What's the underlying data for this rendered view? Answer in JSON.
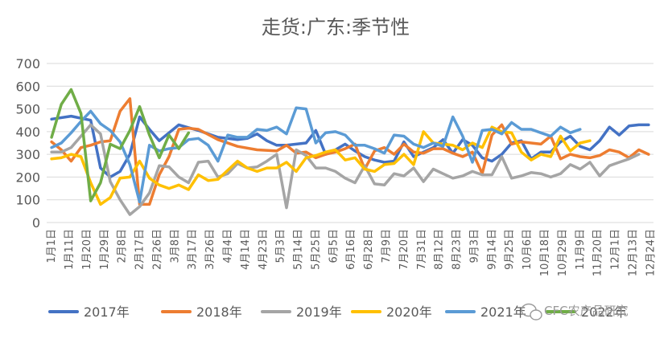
{
  "chart_data": {
    "type": "line",
    "title": "走货:广东:季节性",
    "xlabel": "",
    "ylabel": "",
    "ylim": [
      0,
      700
    ],
    "yticks": [
      0,
      100,
      200,
      300,
      400,
      500,
      600,
      700
    ],
    "grid": true,
    "legend_position": "bottom",
    "categories": [
      "1月1日",
      "1月11日",
      "1月20日",
      "1月29日",
      "2月8日",
      "2月17日",
      "2月26日",
      "3月8日",
      "3月17日",
      "3月26日",
      "4月4日",
      "4月14日",
      "4月23日",
      "5月3日",
      "5月14日",
      "5月25日",
      "6月5日",
      "6月16日",
      "6月28日",
      "7月9日",
      "7月20日",
      "7月31日",
      "8月12日",
      "8月23日",
      "9月3日",
      "9月14日",
      "9月25日",
      "10月6日",
      "10月18日",
      "10月29日",
      "11月9日",
      "11月20日",
      "12月1日",
      "12月13日",
      "12月24日"
    ],
    "series": [
      {
        "name": "2017年",
        "color": "#4472c4",
        "points": [
          [
            1,
            455
          ],
          [
            3,
            468
          ],
          [
            5,
            450
          ],
          [
            6,
            240
          ],
          [
            7,
            200
          ],
          [
            8,
            225
          ],
          [
            9,
            300
          ],
          [
            10,
            465
          ],
          [
            11,
            410
          ],
          [
            12,
            360
          ],
          [
            14,
            430
          ],
          [
            16,
            405
          ],
          [
            18,
            375
          ],
          [
            20,
            365
          ],
          [
            21,
            370
          ],
          [
            22,
            390
          ],
          [
            23,
            360
          ],
          [
            24,
            340
          ],
          [
            25,
            340
          ],
          [
            27,
            350
          ],
          [
            28,
            405
          ],
          [
            29,
            300
          ],
          [
            30,
            320
          ],
          [
            31,
            345
          ],
          [
            32,
            315
          ],
          [
            33,
            290
          ],
          [
            34,
            275
          ],
          [
            35,
            265
          ],
          [
            36,
            270
          ],
          [
            37,
            355
          ],
          [
            38,
            290
          ],
          [
            39,
            310
          ],
          [
            40,
            330
          ],
          [
            41,
            365
          ],
          [
            42,
            305
          ],
          [
            43,
            365
          ],
          [
            44,
            340
          ],
          [
            45,
            285
          ],
          [
            46,
            270
          ],
          [
            47,
            300
          ],
          [
            48,
            350
          ],
          [
            49,
            360
          ],
          [
            50,
            280
          ],
          [
            51,
            310
          ],
          [
            52,
            310
          ],
          [
            53,
            355
          ],
          [
            54,
            380
          ],
          [
            55,
            335
          ],
          [
            56,
            320
          ],
          [
            57,
            360
          ],
          [
            58,
            420
          ],
          [
            59,
            385
          ],
          [
            60,
            425
          ],
          [
            61,
            430
          ],
          [
            62,
            430
          ]
        ]
      },
      {
        "name": "2018年",
        "color": "#ed7d31",
        "points": [
          [
            1,
            355
          ],
          [
            2,
            320
          ],
          [
            3,
            270
          ],
          [
            4,
            330
          ],
          [
            5,
            340
          ],
          [
            6,
            355
          ],
          [
            7,
            360
          ],
          [
            8,
            490
          ],
          [
            9,
            545
          ],
          [
            10,
            80
          ],
          [
            11,
            80
          ],
          [
            12,
            210
          ],
          [
            13,
            290
          ],
          [
            14,
            410
          ],
          [
            15,
            415
          ],
          [
            16,
            410
          ],
          [
            18,
            365
          ],
          [
            20,
            335
          ],
          [
            22,
            320
          ],
          [
            24,
            315
          ],
          [
            25,
            340
          ],
          [
            26,
            305
          ],
          [
            27,
            310
          ],
          [
            28,
            285
          ],
          [
            29,
            300
          ],
          [
            30,
            310
          ],
          [
            31,
            325
          ],
          [
            32,
            345
          ],
          [
            33,
            235
          ],
          [
            34,
            315
          ],
          [
            35,
            330
          ],
          [
            36,
            300
          ],
          [
            37,
            345
          ],
          [
            38,
            310
          ],
          [
            39,
            305
          ],
          [
            40,
            325
          ],
          [
            41,
            325
          ],
          [
            42,
            305
          ],
          [
            43,
            290
          ],
          [
            44,
            310
          ],
          [
            45,
            215
          ],
          [
            46,
            385
          ],
          [
            47,
            430
          ],
          [
            48,
            345
          ],
          [
            49,
            355
          ],
          [
            50,
            350
          ],
          [
            51,
            345
          ],
          [
            52,
            380
          ],
          [
            53,
            280
          ],
          [
            54,
            300
          ],
          [
            55,
            290
          ],
          [
            56,
            285
          ],
          [
            57,
            295
          ],
          [
            58,
            320
          ],
          [
            59,
            310
          ],
          [
            60,
            285
          ],
          [
            61,
            320
          ],
          [
            62,
            300
          ]
        ]
      },
      {
        "name": "2019年",
        "color": "#a5a5a5",
        "points": [
          [
            1,
            310
          ],
          [
            2,
            310
          ],
          [
            3,
            330
          ],
          [
            4,
            380
          ],
          [
            5,
            430
          ],
          [
            6,
            390
          ],
          [
            7,
            180
          ],
          [
            8,
            100
          ],
          [
            9,
            35
          ],
          [
            10,
            70
          ],
          [
            11,
            130
          ],
          [
            12,
            250
          ],
          [
            13,
            245
          ],
          [
            14,
            200
          ],
          [
            15,
            175
          ],
          [
            16,
            265
          ],
          [
            17,
            270
          ],
          [
            18,
            200
          ],
          [
            19,
            215
          ],
          [
            20,
            260
          ],
          [
            21,
            240
          ],
          [
            22,
            245
          ],
          [
            23,
            270
          ],
          [
            24,
            300
          ],
          [
            25,
            65
          ],
          [
            26,
            320
          ],
          [
            27,
            295
          ],
          [
            28,
            240
          ],
          [
            29,
            240
          ],
          [
            30,
            225
          ],
          [
            31,
            195
          ],
          [
            32,
            175
          ],
          [
            33,
            250
          ],
          [
            34,
            170
          ],
          [
            35,
            165
          ],
          [
            36,
            215
          ],
          [
            37,
            205
          ],
          [
            38,
            240
          ],
          [
            39,
            180
          ],
          [
            40,
            235
          ],
          [
            41,
            215
          ],
          [
            42,
            195
          ],
          [
            43,
            205
          ],
          [
            44,
            225
          ],
          [
            45,
            210
          ],
          [
            46,
            210
          ],
          [
            47,
            290
          ],
          [
            48,
            195
          ],
          [
            49,
            205
          ],
          [
            50,
            220
          ],
          [
            51,
            215
          ],
          [
            52,
            200
          ],
          [
            53,
            215
          ],
          [
            54,
            255
          ],
          [
            55,
            235
          ],
          [
            56,
            265
          ],
          [
            57,
            205
          ],
          [
            58,
            250
          ],
          [
            59,
            265
          ],
          [
            60,
            280
          ],
          [
            61,
            300
          ]
        ]
      },
      {
        "name": "2020年",
        "color": "#ffc000",
        "points": [
          [
            1,
            280
          ],
          [
            2,
            285
          ],
          [
            3,
            300
          ],
          [
            4,
            290
          ],
          [
            5,
            175
          ],
          [
            6,
            80
          ],
          [
            7,
            110
          ],
          [
            8,
            195
          ],
          [
            9,
            200
          ],
          [
            10,
            270
          ],
          [
            11,
            195
          ],
          [
            12,
            165
          ],
          [
            13,
            150
          ],
          [
            14,
            165
          ],
          [
            15,
            145
          ],
          [
            16,
            210
          ],
          [
            17,
            185
          ],
          [
            18,
            190
          ],
          [
            19,
            230
          ],
          [
            20,
            270
          ],
          [
            21,
            240
          ],
          [
            22,
            225
          ],
          [
            23,
            240
          ],
          [
            24,
            240
          ],
          [
            25,
            265
          ],
          [
            26,
            225
          ],
          [
            27,
            285
          ],
          [
            28,
            295
          ],
          [
            29,
            310
          ],
          [
            30,
            320
          ],
          [
            31,
            275
          ],
          [
            32,
            285
          ],
          [
            33,
            235
          ],
          [
            34,
            225
          ],
          [
            35,
            255
          ],
          [
            36,
            260
          ],
          [
            37,
            300
          ],
          [
            38,
            255
          ],
          [
            39,
            400
          ],
          [
            40,
            350
          ],
          [
            41,
            345
          ],
          [
            42,
            340
          ],
          [
            43,
            320
          ],
          [
            44,
            350
          ],
          [
            45,
            330
          ],
          [
            46,
            420
          ],
          [
            47,
            400
          ],
          [
            48,
            395
          ],
          [
            49,
            310
          ],
          [
            50,
            275
          ],
          [
            51,
            300
          ],
          [
            52,
            290
          ],
          [
            53,
            380
          ],
          [
            54,
            315
          ],
          [
            55,
            350
          ],
          [
            56,
            360
          ]
        ]
      },
      {
        "name": "2021年",
        "color": "#5b9bd5",
        "points": [
          [
            1,
            330
          ],
          [
            2,
            350
          ],
          [
            3,
            395
          ],
          [
            4,
            445
          ],
          [
            5,
            490
          ],
          [
            6,
            435
          ],
          [
            7,
            405
          ],
          [
            8,
            355
          ],
          [
            9,
            255
          ],
          [
            10,
            90
          ],
          [
            11,
            340
          ],
          [
            12,
            315
          ],
          [
            13,
            325
          ],
          [
            14,
            330
          ],
          [
            15,
            365
          ],
          [
            16,
            370
          ],
          [
            17,
            340
          ],
          [
            18,
            270
          ],
          [
            19,
            385
          ],
          [
            20,
            375
          ],
          [
            21,
            375
          ],
          [
            22,
            410
          ],
          [
            23,
            405
          ],
          [
            24,
            420
          ],
          [
            25,
            390
          ],
          [
            26,
            505
          ],
          [
            27,
            500
          ],
          [
            28,
            350
          ],
          [
            29,
            395
          ],
          [
            30,
            400
          ],
          [
            31,
            385
          ],
          [
            32,
            340
          ],
          [
            33,
            340
          ],
          [
            34,
            325
          ],
          [
            35,
            305
          ],
          [
            36,
            385
          ],
          [
            37,
            380
          ],
          [
            38,
            345
          ],
          [
            39,
            330
          ],
          [
            40,
            350
          ],
          [
            41,
            335
          ],
          [
            42,
            465
          ],
          [
            43,
            380
          ],
          [
            44,
            265
          ],
          [
            45,
            405
          ],
          [
            46,
            410
          ],
          [
            47,
            390
          ],
          [
            48,
            440
          ],
          [
            49,
            410
          ],
          [
            50,
            410
          ],
          [
            51,
            395
          ],
          [
            52,
            380
          ],
          [
            53,
            420
          ],
          [
            54,
            395
          ],
          [
            55,
            410
          ]
        ]
      },
      {
        "name": "2022年",
        "color": "#70ad47",
        "points": [
          [
            1,
            375
          ],
          [
            2,
            520
          ],
          [
            3,
            585
          ],
          [
            4,
            480
          ],
          [
            5,
            95
          ],
          [
            6,
            175
          ],
          [
            7,
            345
          ],
          [
            8,
            325
          ],
          [
            9,
            405
          ],
          [
            10,
            510
          ],
          [
            11,
            385
          ],
          [
            12,
            285
          ],
          [
            13,
            385
          ],
          [
            14,
            325
          ],
          [
            15,
            395
          ]
        ]
      }
    ]
  },
  "watermark": {
    "text": "CFC农产品研究",
    "icon": "wechat-icon"
  }
}
